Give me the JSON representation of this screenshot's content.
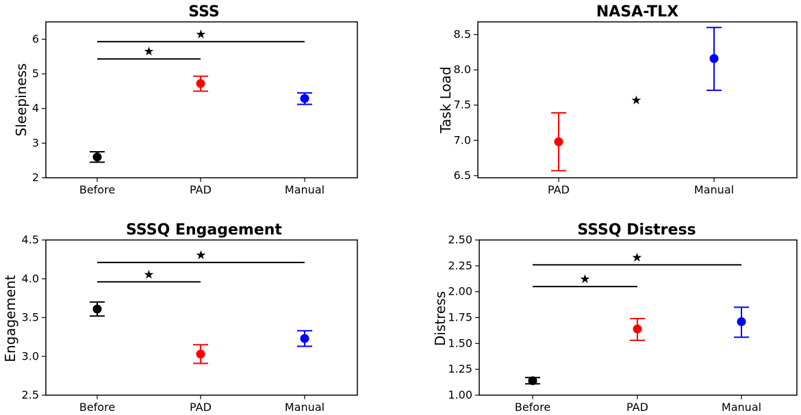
{
  "chart_data": [
    {
      "type": "errorbar",
      "title": "SSS",
      "ylabel": "Sleepiness",
      "xlabel": "",
      "ylim": [
        2,
        6.5
      ],
      "yticks": [
        2,
        3,
        4,
        5,
        6
      ],
      "categories": [
        "Before",
        "PAD",
        "Manual"
      ],
      "colors": [
        "#000000",
        "#ff0000",
        "#0000ff"
      ],
      "means": [
        2.6,
        4.72,
        4.29
      ],
      "err_low": [
        2.45,
        4.5,
        4.12
      ],
      "err_high": [
        2.75,
        4.93,
        4.45
      ],
      "significance": [
        {
          "from": "Before",
          "to": "PAD",
          "y": 5.43,
          "label": "★"
        },
        {
          "from": "Before",
          "to": "Manual",
          "y": 5.93,
          "label": "★"
        }
      ]
    },
    {
      "type": "errorbar",
      "title": "NASA-TLX",
      "ylabel": "Task Load",
      "xlabel": "",
      "ylim": [
        6.47,
        8.68
      ],
      "yticks": [
        6.5,
        7.0,
        7.5,
        8.0,
        8.5
      ],
      "ytick_labels": [
        "6.5",
        "7.0",
        "7.5",
        "8.0",
        "8.5"
      ],
      "categories": [
        "PAD",
        "Manual"
      ],
      "colors": [
        "#ff0000",
        "#0000ff"
      ],
      "means": [
        6.98,
        8.16
      ],
      "err_low": [
        6.57,
        7.71
      ],
      "err_high": [
        7.39,
        8.6
      ],
      "significance": [
        {
          "from": "PAD",
          "to": "Manual",
          "y": 7.57,
          "label": "★",
          "no_line": true
        }
      ]
    },
    {
      "type": "errorbar",
      "title": "SSSQ Engagement",
      "ylabel": "Engagement",
      "xlabel": "",
      "ylim": [
        2.5,
        4.5
      ],
      "yticks": [
        2.5,
        3.0,
        3.5,
        4.0,
        4.5
      ],
      "ytick_labels": [
        "2.5",
        "3.0",
        "3.5",
        "4.0",
        "4.5"
      ],
      "categories": [
        "Before",
        "PAD",
        "Manual"
      ],
      "colors": [
        "#000000",
        "#ff0000",
        "#0000ff"
      ],
      "means": [
        3.61,
        3.03,
        3.23
      ],
      "err_low": [
        3.52,
        2.91,
        3.13
      ],
      "err_high": [
        3.7,
        3.15,
        3.33
      ],
      "significance": [
        {
          "from": "Before",
          "to": "PAD",
          "y": 3.96,
          "label": "★"
        },
        {
          "from": "Before",
          "to": "Manual",
          "y": 4.21,
          "label": "★"
        }
      ]
    },
    {
      "type": "errorbar",
      "title": "SSSQ Distress",
      "ylabel": "Distress",
      "xlabel": "",
      "ylim": [
        1.0,
        2.5
      ],
      "yticks": [
        1.0,
        1.25,
        1.5,
        1.75,
        2.0,
        2.25,
        2.5
      ],
      "ytick_labels": [
        "1.00",
        "1.25",
        "1.50",
        "1.75",
        "2.00",
        "2.25",
        "2.50"
      ],
      "categories": [
        "Before",
        "PAD",
        "Manual"
      ],
      "colors": [
        "#000000",
        "#ff0000",
        "#0000ff"
      ],
      "means": [
        1.14,
        1.64,
        1.71
      ],
      "err_low": [
        1.11,
        1.53,
        1.56
      ],
      "err_high": [
        1.17,
        1.74,
        1.85
      ],
      "significance": [
        {
          "from": "Before",
          "to": "PAD",
          "y": 2.05,
          "label": "★"
        },
        {
          "from": "Before",
          "to": "Manual",
          "y": 2.26,
          "label": "★"
        }
      ]
    }
  ]
}
